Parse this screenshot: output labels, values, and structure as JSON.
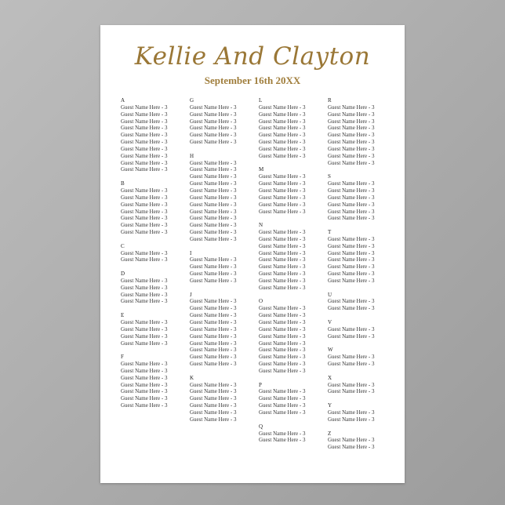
{
  "header": {
    "title": "Kellie And Clayton",
    "date": "September 16th 20XX"
  },
  "colors": {
    "accent": "#9a7736",
    "text": "#333333",
    "background": "#ffffff"
  },
  "columns": [
    [
      {
        "letter": "A",
        "guests": [
          "Guest Name Here  - 3",
          "Guest Name Here  - 3",
          "Guest Name Here  - 3",
          "Guest Name Here  - 3",
          "Guest Name Here  - 3",
          "Guest Name Here  - 3",
          "Guest Name Here  - 3",
          "Guest Name Here  - 3",
          "Guest Name Here  - 3",
          "Guest Name Here  - 3"
        ]
      },
      {
        "letter": "B",
        "guests": [
          "Guest Name Here  - 3",
          "Guest Name Here  - 3",
          "Guest Name Here  - 3",
          "Guest Name Here  - 3",
          "Guest Name Here  - 3",
          "Guest Name Here  - 3",
          "Guest Name Here  - 3"
        ]
      },
      {
        "letter": "C",
        "guests": [
          "Guest Name Here  - 3",
          "Guest Name Here  - 3"
        ]
      },
      {
        "letter": "D",
        "guests": [
          "Guest Name Here  - 3",
          "Guest Name Here  - 3",
          "Guest Name Here  - 3",
          "Guest Name Here  - 3"
        ]
      },
      {
        "letter": "E",
        "guests": [
          "Guest Name Here  - 3",
          "Guest Name Here  - 3",
          "Guest Name Here  - 3",
          "Guest Name Here  - 3"
        ]
      },
      {
        "letter": "F",
        "guests": [
          "Guest Name Here  - 3",
          "Guest Name Here  - 3",
          "Guest Name Here  - 3",
          "Guest Name Here  - 3",
          "Guest Name Here  - 3",
          "Guest Name Here  - 3",
          "Guest Name Here  - 3"
        ]
      }
    ],
    [
      {
        "letter": "G",
        "guests": [
          "Guest Name Here  - 3",
          "Guest Name Here  - 3",
          "Guest Name Here  - 3",
          "Guest Name Here  - 3",
          "Guest Name Here  - 3",
          "Guest Name Here  - 3"
        ]
      },
      {
        "letter": "H",
        "guests": [
          "Guest Name Here  - 3",
          "Guest Name Here  - 3",
          "Guest Name Here  - 3",
          "Guest Name Here  - 3",
          "Guest Name Here  - 3",
          "Guest Name Here  - 3",
          "Guest Name Here  - 3",
          "Guest Name Here  - 3",
          "Guest Name Here  - 3",
          "Guest Name Here  - 3",
          "Guest Name Here  - 3",
          "Guest Name Here  - 3"
        ]
      },
      {
        "letter": "I",
        "guests": [
          "Guest Name Here  - 3",
          "Guest Name Here  - 3",
          "Guest Name Here  - 3",
          "Guest Name Here  - 3"
        ]
      },
      {
        "letter": "J",
        "guests": [
          "Guest Name Here  - 3",
          "Guest Name Here  - 3",
          "Guest Name Here  - 3",
          "Guest Name Here  - 3",
          "Guest Name Here  - 3",
          "Guest Name Here  - 3",
          "Guest Name Here  - 3",
          "Guest Name Here  - 3",
          "Guest Name Here  - 3",
          "Guest Name Here  - 3"
        ]
      },
      {
        "letter": "K",
        "guests": [
          "Guest Name Here  - 3",
          "Guest Name Here  - 3",
          "Guest Name Here  - 3",
          "Guest Name Here  - 3",
          "Guest Name Here  - 3",
          "Guest Name Here  - 3"
        ]
      }
    ],
    [
      {
        "letter": "L",
        "guests": [
          "Guest Name Here  - 3",
          "Guest Name Here  - 3",
          "Guest Name Here  - 3",
          "Guest Name Here  - 3",
          "Guest Name Here  - 3",
          "Guest Name Here  - 3",
          "Guest Name Here  - 3",
          "Guest Name Here  - 3"
        ]
      },
      {
        "letter": "M",
        "guests": [
          "Guest Name Here  - 3",
          "Guest Name Here  - 3",
          "Guest Name Here  - 3",
          "Guest Name Here  - 3",
          "Guest Name Here  - 3",
          "Guest Name Here  - 3"
        ]
      },
      {
        "letter": "N",
        "guests": [
          "Guest Name Here  - 3",
          "Guest Name Here  - 3",
          "Guest Name Here  - 3",
          "Guest Name Here  - 3",
          "Guest Name Here  - 3",
          "Guest Name Here  - 3",
          "Guest Name Here  - 3",
          "Guest Name Here  - 3",
          "Guest Name Here  - 3"
        ]
      },
      {
        "letter": "O",
        "guests": [
          "Guest Name Here  - 3",
          "Guest Name Here  - 3",
          "Guest Name Here  - 3",
          "Guest Name Here  - 3",
          "Guest Name Here  - 3",
          "Guest Name Here  - 3",
          "Guest Name Here  - 3",
          "Guest Name Here  - 3",
          "Guest Name Here  - 3",
          "Guest Name Here  - 3"
        ]
      },
      {
        "letter": "P",
        "guests": [
          "Guest Name Here  - 3",
          "Guest Name Here  - 3",
          "Guest Name Here  - 3",
          "Guest Name Here  - 3"
        ]
      },
      {
        "letter": "Q",
        "guests": [
          "Guest Name Here  - 3",
          "Guest Name Here  - 3"
        ]
      }
    ],
    [
      {
        "letter": "R",
        "guests": [
          "Guest Name Here  - 3",
          "Guest Name Here  - 3",
          "Guest Name Here  - 3",
          "Guest Name Here  - 3",
          "Guest Name Here  - 3",
          "Guest Name Here  - 3",
          "Guest Name Here  - 3",
          "Guest Name Here  - 3",
          "Guest Name Here  - 3"
        ]
      },
      {
        "letter": "S",
        "guests": [
          "Guest Name Here  - 3",
          "Guest Name Here  - 3",
          "Guest Name Here  - 3",
          "Guest Name Here  - 3",
          "Guest Name Here  - 3",
          "Guest Name Here  - 3"
        ]
      },
      {
        "letter": "T",
        "guests": [
          "Guest Name Here  - 3",
          "Guest Name Here  - 3",
          "Guest Name Here  - 3",
          "Guest Name Here  - 3",
          "Guest Name Here  - 3",
          "Guest Name Here  - 3",
          "Guest Name Here  - 3"
        ]
      },
      {
        "letter": "U",
        "guests": [
          "Guest Name Here  - 3",
          "Guest Name Here  - 3"
        ]
      },
      {
        "letter": "V",
        "guests": [
          "Guest Name Here  - 3",
          "Guest Name Here  - 3"
        ]
      },
      {
        "letter": "W",
        "guests": [
          "Guest Name Here  - 3",
          "Guest Name Here  - 3"
        ]
      },
      {
        "letter": "X",
        "guests": [
          "Guest Name Here  - 3",
          "Guest Name Here  - 3"
        ]
      },
      {
        "letter": "Y",
        "guests": [
          "Guest Name Here  - 3",
          "Guest Name Here  - 3"
        ]
      },
      {
        "letter": "Z",
        "guests": [
          "Guest Name Here  - 3",
          "Guest Name Here  - 3"
        ]
      }
    ]
  ]
}
